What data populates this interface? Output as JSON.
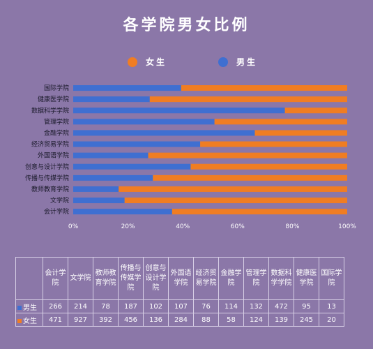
{
  "title": "各学院男女比例",
  "colors": {
    "female": "#f07d23",
    "male": "#3f6fd1",
    "background": "#8b77a8"
  },
  "legend": {
    "female": "女生",
    "male": "男生"
  },
  "chart_data": {
    "type": "bar",
    "orientation": "horizontal",
    "stacked": "percent",
    "title": "各学院男女比例",
    "categories": [
      "国际学院",
      "健康医学院",
      "数据科学学院",
      "管理学院",
      "金融学院",
      "经济贸易学院",
      "外国语学院",
      "创意与设计学院",
      "传播与传媒学院",
      "教师教育学院",
      "文学院",
      "会计学院"
    ],
    "series": [
      {
        "name": "男生",
        "color": "#3f6fd1",
        "values": [
          13,
          95,
          472,
          132,
          114,
          76,
          107,
          102,
          187,
          78,
          214,
          266
        ]
      },
      {
        "name": "女生",
        "color": "#f07d23",
        "values": [
          20,
          245,
          139,
          124,
          58,
          88,
          284,
          136,
          456,
          392,
          927,
          471
        ]
      }
    ],
    "xlim": [
      0,
      100
    ],
    "x_ticks": [
      "0%",
      "20%",
      "40%",
      "60%",
      "80%",
      "100%"
    ],
    "legend_position": "top"
  },
  "table": {
    "columns": [
      "会计学院",
      "文学院",
      "教师教育学院",
      "传播与传媒学院",
      "创意与设计学院",
      "外国语学院",
      "经济贸易学院",
      "金融学院",
      "管理学院",
      "数据科学学院",
      "健康医学院",
      "国际学院"
    ],
    "header_lines": [
      [
        "会计学",
        "院"
      ],
      [
        "文学院"
      ],
      [
        "教师教",
        "育学院"
      ],
      [
        "传播与",
        "传媒学",
        "院"
      ],
      [
        "创意与",
        "设计学",
        "院"
      ],
      [
        "外国语",
        "学院"
      ],
      [
        "经济贸",
        "易学院"
      ],
      [
        "金融学",
        "院"
      ],
      [
        "管理学",
        "院"
      ],
      [
        "数据科",
        "学学院"
      ],
      [
        "健康医",
        "学院"
      ],
      [
        "国际学",
        "院"
      ]
    ],
    "rows": [
      {
        "label": "男生",
        "color": "#3f6fd1",
        "values": [
          "266",
          "214",
          "78",
          "187",
          "102",
          "107",
          "76",
          "114",
          "132",
          "472",
          "95",
          "13"
        ]
      },
      {
        "label": "女生",
        "color": "#f07d23",
        "values": [
          "471",
          "927",
          "392",
          "456",
          "136",
          "284",
          "88",
          "58",
          "124",
          "139",
          "245",
          "20"
        ]
      }
    ]
  }
}
